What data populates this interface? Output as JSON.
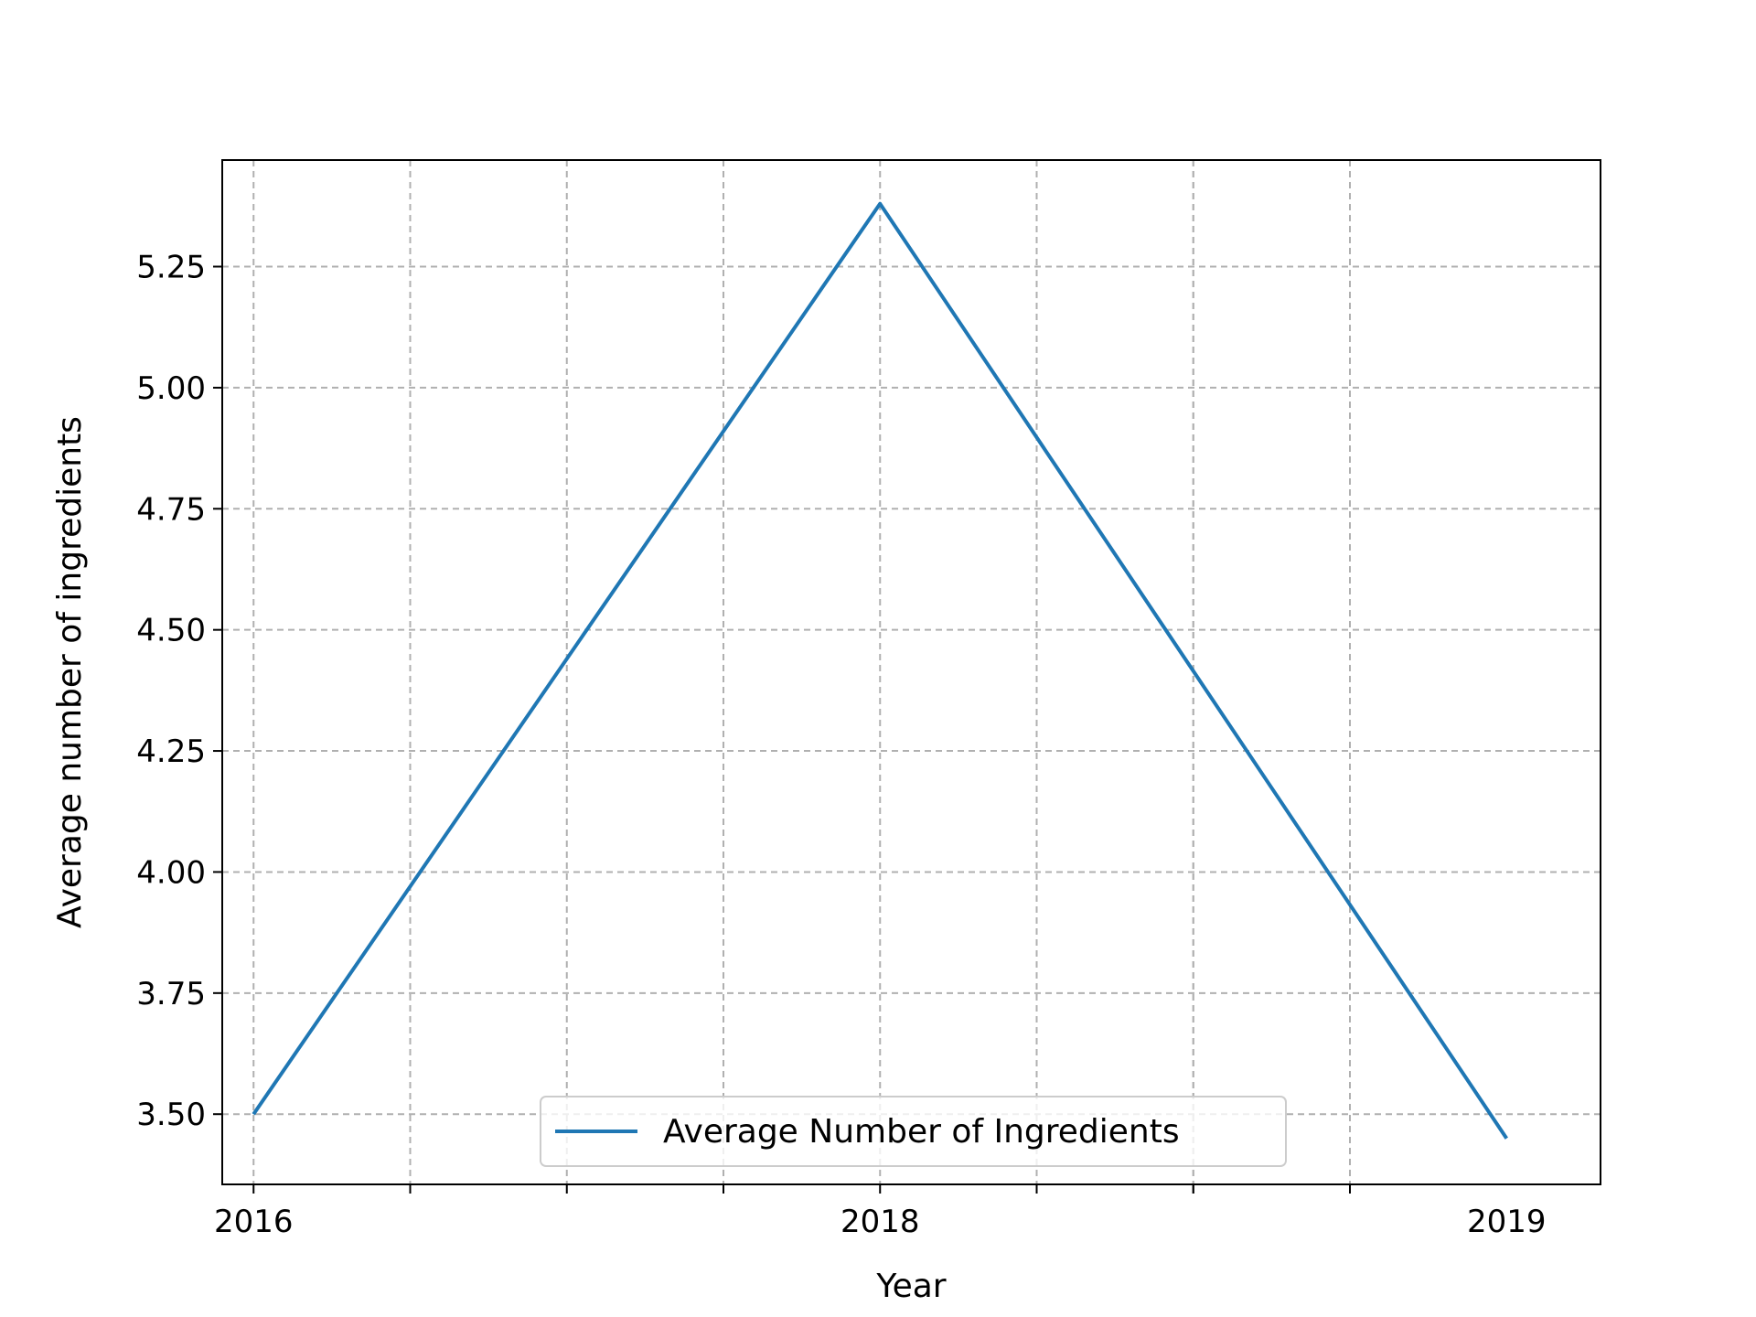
{
  "chart_data": {
    "type": "line",
    "title": "",
    "xlabel": "Year",
    "ylabel": "Average number of ingredients",
    "x_tick_labels": [
      {
        "x": 2016,
        "label": "2016"
      },
      {
        "x": 2018,
        "label": "2018"
      },
      {
        "x": 2019,
        "label": "2019"
      }
    ],
    "x_minor_ticks": [
      2016.25,
      2016.5,
      2016.75,
      2017.25,
      2017.5,
      2017.75
    ],
    "x_tick_positions_note": "",
    "xlim": [
      2015.9,
      2020.3
    ],
    "y_ticks": [
      {
        "y": 3.5,
        "label": "3.50"
      },
      {
        "y": 3.75,
        "label": "3.75"
      },
      {
        "y": 4.0,
        "label": "4.00"
      },
      {
        "y": 4.25,
        "label": "4.25"
      },
      {
        "y": 4.5,
        "label": "4.50"
      },
      {
        "y": 4.75,
        "label": "4.75"
      },
      {
        "y": 5.0,
        "label": "5.00"
      },
      {
        "y": 5.25,
        "label": "5.25"
      }
    ],
    "ylim": [
      3.355,
      5.47
    ],
    "grid": true,
    "legend_position": "lower center",
    "series": [
      {
        "name": "Average Number of Ingredients",
        "color": "#1f77b4",
        "points": [
          {
            "x": 2016,
            "y": 3.5
          },
          {
            "x": 2018,
            "y": 5.38
          },
          {
            "x": 2019,
            "y": 3.45
          }
        ]
      }
    ]
  }
}
